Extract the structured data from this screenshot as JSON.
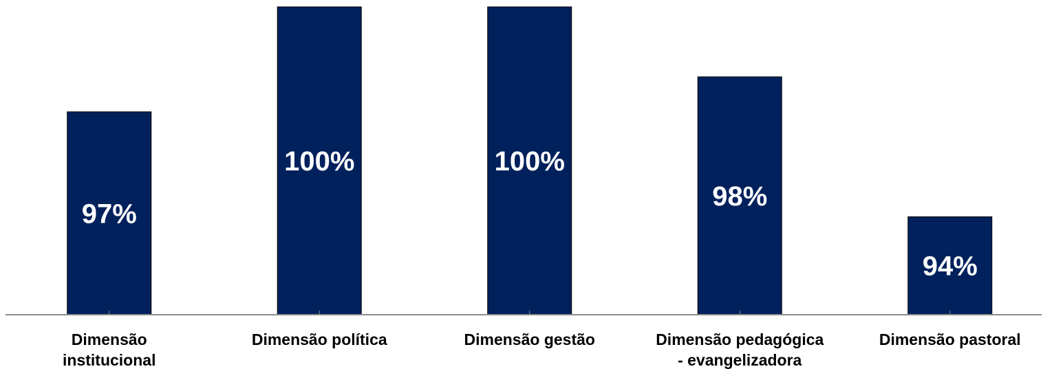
{
  "chart_data": {
    "type": "bar",
    "categories": [
      [
        "Dimensão",
        "institucional"
      ],
      [
        "Dimensão política"
      ],
      [
        "Dimensão gestão"
      ],
      [
        "Dimensão pedagógica",
        "- evangelizadora"
      ],
      [
        "Dimensão pastoral"
      ]
    ],
    "values": [
      97,
      100,
      100,
      98,
      94
    ],
    "data_labels": [
      "97%",
      "100%",
      "100%",
      "98%",
      "94%"
    ],
    "title": "",
    "xlabel": "",
    "ylabel": "",
    "ylim": [
      91.2,
      100
    ],
    "grid": false,
    "legend": "none",
    "bar_color": "#00215c",
    "label_color": "#ffffff"
  }
}
